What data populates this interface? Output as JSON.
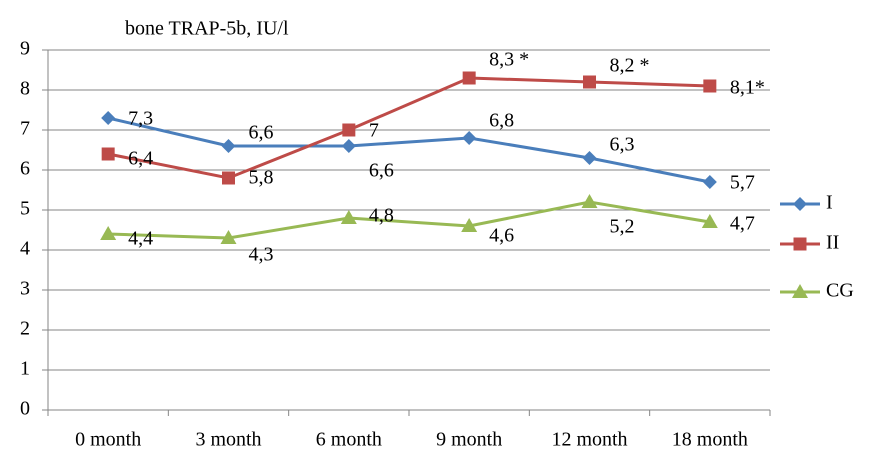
{
  "chart_data": {
    "type": "line",
    "title": "bone TRAP-5b, IU/l",
    "categories": [
      "0 month",
      "3 month",
      "6 month",
      "9 month",
      "12 month",
      "18 month"
    ],
    "series": [
      {
        "name": "I",
        "color": "#4a7ebb",
        "marker": "diamond",
        "values": [
          7.3,
          6.6,
          6.6,
          6.8,
          6.3,
          5.7
        ],
        "value_labels": [
          "7,3",
          "6,6",
          "6,6",
          "6,8",
          "6,3",
          "5,7"
        ]
      },
      {
        "name": "II",
        "color": "#be4b48",
        "marker": "square",
        "values": [
          6.4,
          5.8,
          7,
          8.3,
          8.2,
          8.1
        ],
        "value_labels": [
          "6,4",
          "5,8",
          "7",
          "8,3 *",
          "8,2 *",
          "8,1*"
        ]
      },
      {
        "name": "CG",
        "color": "#98b954",
        "marker": "triangle",
        "values": [
          4.4,
          4.3,
          4.8,
          4.6,
          5.2,
          4.7
        ],
        "value_labels": [
          "4,4",
          "4,3",
          "4,8",
          "4,6",
          "5,2",
          "4,7"
        ]
      }
    ],
    "ylim": [
      0,
      9
    ],
    "yticks": [
      0,
      1,
      2,
      3,
      4,
      5,
      6,
      7,
      8,
      9
    ],
    "grid": true,
    "legend": "right"
  }
}
